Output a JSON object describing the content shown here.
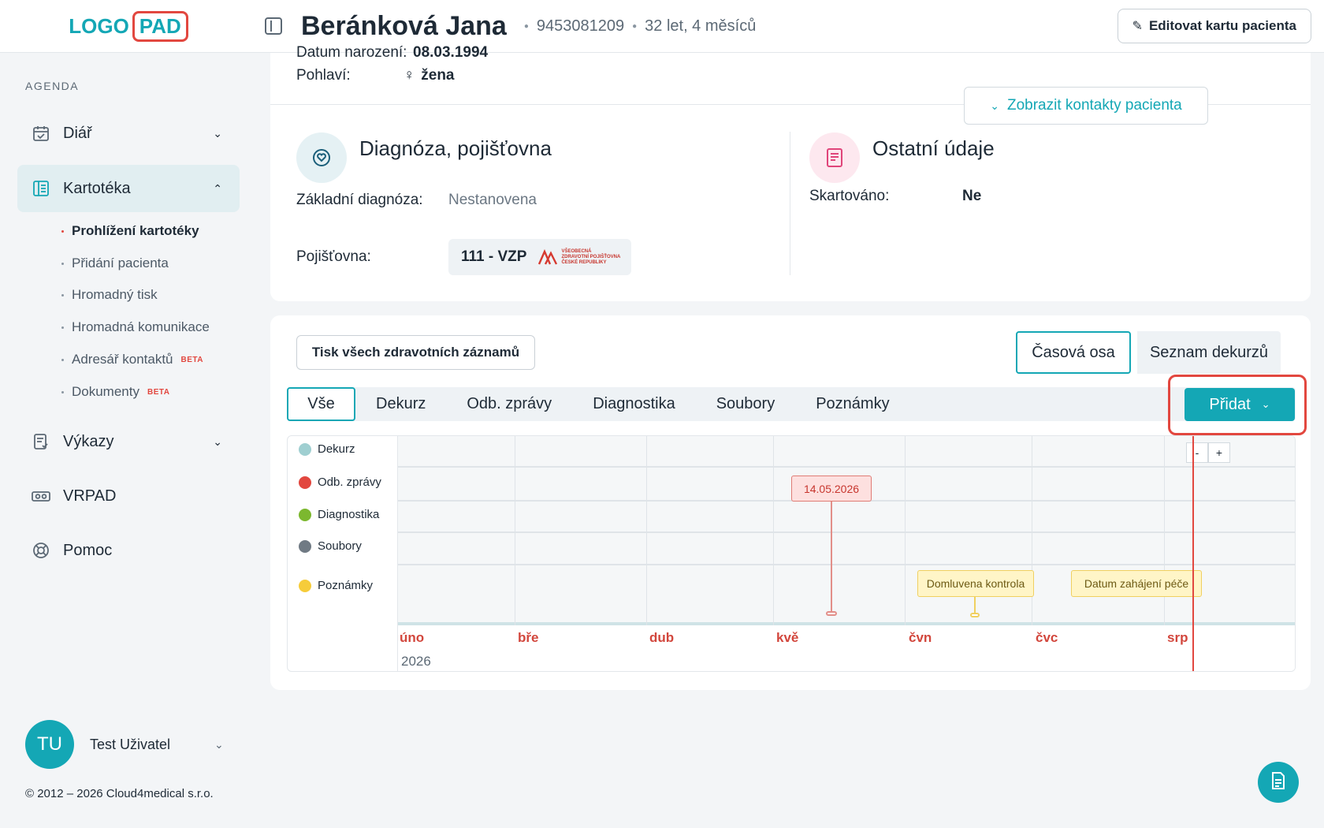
{
  "logo": {
    "part1": "LOGO",
    "part2": "PAD"
  },
  "sidebar": {
    "agenda_label": "AGENDA",
    "items": [
      {
        "label": "Diář",
        "icon": "calendar-icon"
      },
      {
        "label": "Kartotéka",
        "icon": "card-index-icon"
      },
      {
        "label": "Výkazy",
        "icon": "report-icon"
      },
      {
        "label": "VRPAD",
        "icon": "vr-headset-icon"
      },
      {
        "label": "Pomoc",
        "icon": "lifebuoy-icon"
      }
    ],
    "subitems": [
      {
        "label": "Prohlížení kartotéky",
        "beta": ""
      },
      {
        "label": "Přidání pacienta",
        "beta": ""
      },
      {
        "label": "Hromadný tisk",
        "beta": ""
      },
      {
        "label": "Hromadná komunikace",
        "beta": ""
      },
      {
        "label": "Adresář kontaktů",
        "beta": "BETA"
      },
      {
        "label": "Dokumenty",
        "beta": "BETA"
      }
    ],
    "user": {
      "initials": "TU",
      "name": "Test Uživatel"
    },
    "copyright": "© 2012 – 2026 Cloud4medical s.r.o."
  },
  "header": {
    "patient_name": "Beránková Jana",
    "patient_id": "9453081209",
    "age": "32 let, 4 měsíců",
    "edit_label": "Editovat kartu pacienta"
  },
  "personal": {
    "birth_label": "Datum narození:",
    "birth_value": "08.03.1994",
    "sex_label": "Pohlaví:",
    "sex_value": "žena",
    "contacts_label": "Zobrazit kontakty pacienta"
  },
  "diagnosis": {
    "title": "Diagnóza, pojišťovna",
    "basic_label": "Základní diagnóza:",
    "basic_value": "Nestanovena",
    "insurance_label": "Pojišťovna:",
    "insurance_value": "111 - VZP",
    "vzp_text": [
      "VŠEOBECNÁ",
      "ZDRAVOTNÍ POJIŠŤOVNA",
      "ČESKÉ REPUBLIKY"
    ]
  },
  "other": {
    "title": "Ostatní údaje",
    "shredded_label": "Skartováno:",
    "shredded_value": "Ne"
  },
  "records": {
    "print_label": "Tisk všech zdravotních záznamů",
    "view_timeline": "Časová osa",
    "view_list": "Seznam dekurzů",
    "tabs": [
      "Vše",
      "Dekurz",
      "Odb. zprávy",
      "Diagnostika",
      "Soubory",
      "Poznámky"
    ],
    "add_label": "Přidat"
  },
  "timeline": {
    "rows": [
      {
        "label": "Dekurz",
        "color": "#9fcfd1"
      },
      {
        "label": "Odb. zprávy",
        "color": "#e2473f"
      },
      {
        "label": "Diagnostika",
        "color": "#7cb82f"
      },
      {
        "label": "Soubory",
        "color": "#707a84"
      },
      {
        "label": "Poznámky",
        "color": "#f6cc3a"
      }
    ],
    "months": [
      "úno",
      "bře",
      "dub",
      "kvě",
      "čvn",
      "čvc",
      "srp"
    ],
    "year": "2026",
    "zoom_out": "-",
    "zoom_in": "+",
    "events": [
      {
        "label": "14.05.2026",
        "row": "Odb. zprávy"
      },
      {
        "label": "Domluvena kontrola",
        "row": "Poznámky"
      },
      {
        "label": "Datum zahájení péče",
        "row": "Poznámky"
      }
    ]
  }
}
